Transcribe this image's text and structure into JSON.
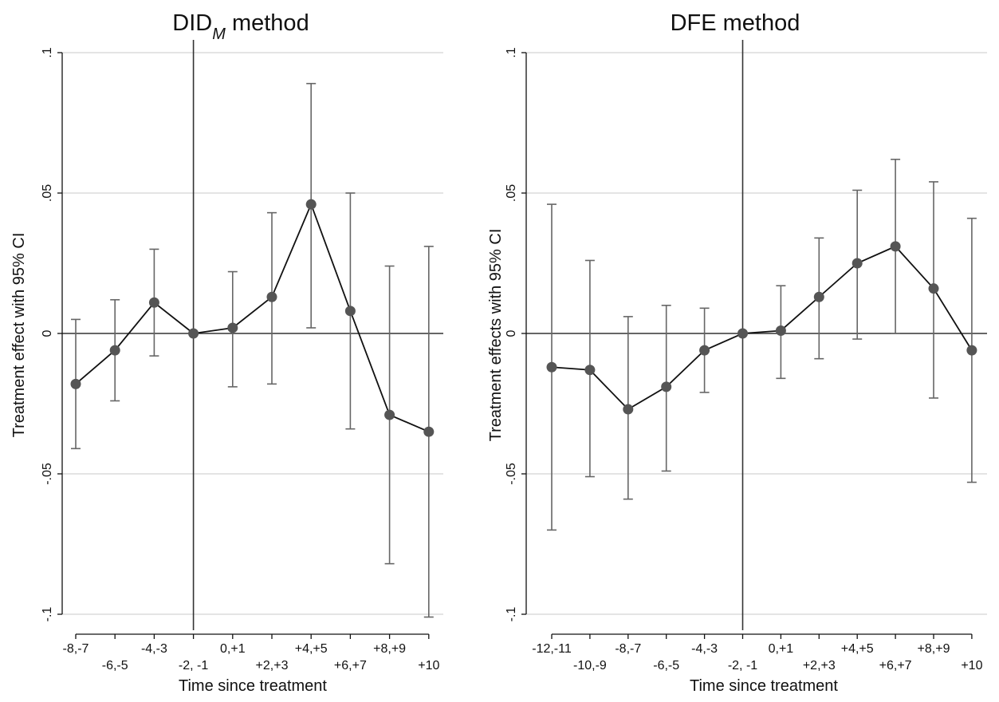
{
  "chart_data": [
    {
      "type": "scatter",
      "title": "DID",
      "title_subscript": "M",
      "title_suffix": " method",
      "xlabel": "Time since treatment",
      "ylabel": "Treatment effect with 95% CI",
      "ylim": [
        -0.1,
        0.1
      ],
      "yticks": [
        {
          "value": 0.1,
          "label": ".1"
        },
        {
          "value": 0.05,
          "label": ".05"
        },
        {
          "value": 0,
          "label": "0"
        },
        {
          "value": -0.05,
          "label": "-.05"
        },
        {
          "value": -0.1,
          "label": "-.1"
        }
      ],
      "categories": [
        "-8,-7",
        "-6,-5",
        "-4,-3",
        "-2, -1",
        "0,+1",
        "+2,+3",
        "+4,+5",
        "+6,+7",
        "+8,+9",
        "+10"
      ],
      "reference_category": "-2, -1",
      "points": [
        {
          "y": -0.018,
          "lo": -0.041,
          "hi": 0.005
        },
        {
          "y": -0.006,
          "lo": -0.024,
          "hi": 0.012
        },
        {
          "y": 0.011,
          "lo": -0.008,
          "hi": 0.03
        },
        {
          "y": 0.0,
          "lo": 0.0,
          "hi": 0.0
        },
        {
          "y": 0.002,
          "lo": -0.019,
          "hi": 0.022
        },
        {
          "y": 0.013,
          "lo": -0.018,
          "hi": 0.043
        },
        {
          "y": 0.046,
          "lo": 0.002,
          "hi": 0.089
        },
        {
          "y": 0.008,
          "lo": -0.034,
          "hi": 0.05
        },
        {
          "y": -0.029,
          "lo": -0.082,
          "hi": 0.024
        },
        {
          "y": -0.035,
          "lo": -0.101,
          "hi": 0.031
        }
      ],
      "grid": true,
      "point_color": "#555555",
      "line_color": "#111111"
    },
    {
      "type": "scatter",
      "title": "DFE method",
      "xlabel": "Time since treatment",
      "ylabel": "Treatment effects with 95% CI",
      "ylim": [
        -0.1,
        0.1
      ],
      "yticks": [
        {
          "value": 0.1,
          "label": ".1"
        },
        {
          "value": 0.05,
          "label": ".05"
        },
        {
          "value": 0,
          "label": "0"
        },
        {
          "value": -0.05,
          "label": "-.05"
        },
        {
          "value": -0.1,
          "label": "-.1"
        }
      ],
      "categories": [
        "-12,-11",
        "-10,-9",
        "-8,-7",
        "-6,-5",
        "-4,-3",
        "-2, -1",
        "0,+1",
        "+2,+3",
        "+4,+5",
        "+6,+7",
        "+8,+9",
        "+10"
      ],
      "reference_category": "-2, -1",
      "points": [
        {
          "y": -0.012,
          "lo": -0.07,
          "hi": 0.046
        },
        {
          "y": -0.013,
          "lo": -0.051,
          "hi": 0.026
        },
        {
          "y": -0.027,
          "lo": -0.059,
          "hi": 0.006
        },
        {
          "y": -0.019,
          "lo": -0.049,
          "hi": 0.01
        },
        {
          "y": -0.006,
          "lo": -0.021,
          "hi": 0.009
        },
        {
          "y": 0.0,
          "lo": 0.0,
          "hi": 0.0
        },
        {
          "y": 0.001,
          "lo": -0.016,
          "hi": 0.017
        },
        {
          "y": 0.013,
          "lo": -0.009,
          "hi": 0.034
        },
        {
          "y": 0.025,
          "lo": -0.002,
          "hi": 0.051
        },
        {
          "y": 0.031,
          "lo": 0.0,
          "hi": 0.062
        },
        {
          "y": 0.016,
          "lo": -0.023,
          "hi": 0.054
        },
        {
          "y": -0.006,
          "lo": -0.053,
          "hi": 0.041
        }
      ],
      "grid": true,
      "point_color": "#555555",
      "line_color": "#111111"
    }
  ]
}
